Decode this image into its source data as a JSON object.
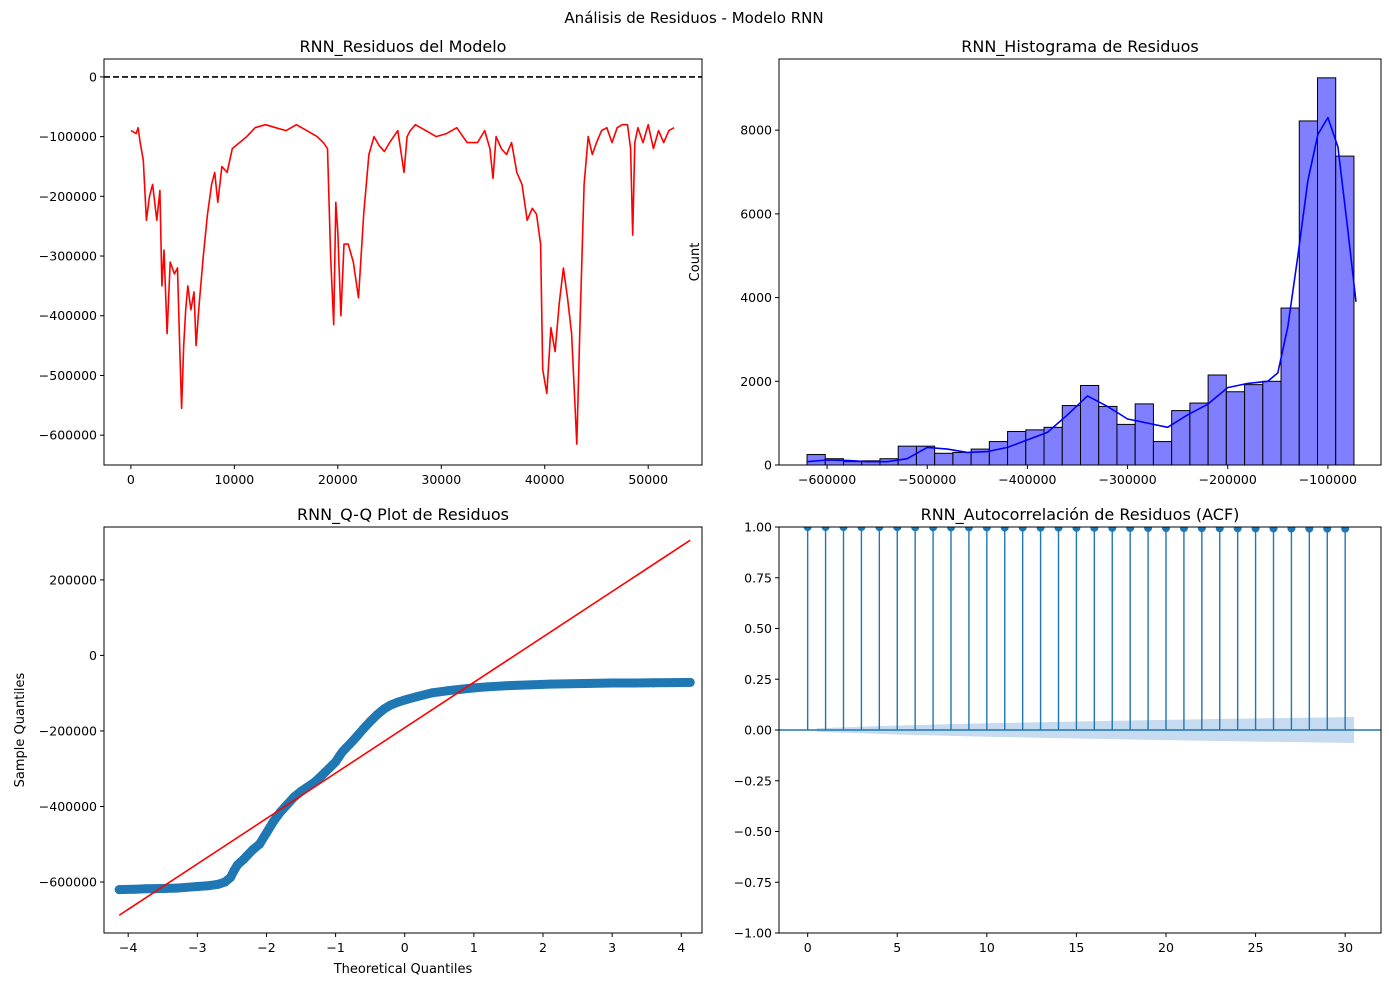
{
  "suptitle": "Análisis de Residuos - Modelo RNN",
  "colors": {
    "residual_line": "#ff0000",
    "hist_fill": "#7f7fff",
    "kde": "#0000ff",
    "qq_points": "#1f77b4",
    "qq_line": "#ff0000",
    "acf": "#1f77b4",
    "acf_band": "#c6dbef"
  },
  "chart_data": [
    {
      "type": "line",
      "title": "RNN_Residuos del Modelo",
      "xlabel": "",
      "ylabel": "",
      "xlim": [
        -2600,
        55200
      ],
      "ylim": [
        -650000,
        30000
      ],
      "xticks": [
        0,
        10000,
        20000,
        30000,
        40000,
        50000
      ],
      "xtick_labels": [
        "0",
        "10000",
        "20000",
        "30000",
        "40000",
        "50000"
      ],
      "yticks": [
        0,
        -100000,
        -200000,
        -300000,
        -400000,
        -500000,
        -600000
      ],
      "ytick_labels": [
        "0",
        "−100000",
        "−200000",
        "−300000",
        "−400000",
        "−500000",
        "−600000"
      ],
      "reference_line": {
        "y": 0,
        "style": "dashed",
        "color": "#000000"
      },
      "series": [
        {
          "x": [
            0,
            500,
            700,
            900,
            1200,
            1500,
            1800,
            2100,
            2500,
            2800,
            3000,
            3200,
            3500,
            3800,
            4200,
            4500,
            4700,
            4900,
            5100,
            5300,
            5500,
            5800,
            6100,
            6300,
            6600,
            7000,
            7400,
            7800,
            8100,
            8400,
            8800,
            9300,
            9800,
            10500,
            11200,
            12000,
            13000,
            14000,
            15000,
            16000,
            17000,
            18000,
            18600,
            19000,
            19300,
            19600,
            19800,
            20000,
            20300,
            20600,
            21000,
            21500,
            22000,
            22500,
            23000,
            23500,
            24000,
            24500,
            25000,
            25800,
            26400,
            26700,
            27000,
            27500,
            28500,
            29500,
            30500,
            31500,
            32500,
            33500,
            34200,
            34700,
            35000,
            35300,
            35800,
            36300,
            36800,
            37300,
            37800,
            38300,
            38800,
            39200,
            39600,
            39800,
            40200,
            40600,
            41000,
            41400,
            41800,
            42200,
            42600,
            42900,
            43100,
            43400,
            43800,
            44200,
            44600,
            45000,
            45500,
            46000,
            46500,
            47000,
            47500,
            48000,
            48300,
            48500,
            48700,
            49000,
            49500,
            50000,
            50500,
            51000,
            51500,
            52000,
            52500
          ],
          "y": [
            -90000,
            -95000,
            -85000,
            -110000,
            -140000,
            -240000,
            -200000,
            -180000,
            -240000,
            -190000,
            -350000,
            -290000,
            -430000,
            -310000,
            -330000,
            -320000,
            -440000,
            -555000,
            -450000,
            -390000,
            -350000,
            -390000,
            -360000,
            -450000,
            -380000,
            -300000,
            -230000,
            -180000,
            -160000,
            -210000,
            -150000,
            -160000,
            -120000,
            -110000,
            -100000,
            -85000,
            -80000,
            -85000,
            -90000,
            -80000,
            -90000,
            -100000,
            -110000,
            -120000,
            -300000,
            -415000,
            -210000,
            -260000,
            -400000,
            -280000,
            -280000,
            -310000,
            -370000,
            -230000,
            -130000,
            -100000,
            -115000,
            -125000,
            -110000,
            -90000,
            -160000,
            -100000,
            -90000,
            -80000,
            -90000,
            -100000,
            -95000,
            -85000,
            -110000,
            -110000,
            -90000,
            -120000,
            -170000,
            -100000,
            -120000,
            -130000,
            -110000,
            -160000,
            -180000,
            -240000,
            -220000,
            -230000,
            -280000,
            -490000,
            -530000,
            -420000,
            -460000,
            -380000,
            -320000,
            -370000,
            -430000,
            -540000,
            -615000,
            -420000,
            -180000,
            -100000,
            -130000,
            -110000,
            -90000,
            -85000,
            -110000,
            -85000,
            -80000,
            -80000,
            -120000,
            -265000,
            -110000,
            -85000,
            -110000,
            -80000,
            -120000,
            -90000,
            -110000,
            -90000,
            -85000
          ]
        }
      ]
    },
    {
      "type": "bar",
      "title": "RNN_Histograma de Residuos",
      "xlabel": "",
      "ylabel": "Count",
      "xlim": [
        -648000,
        -47000
      ],
      "ylim": [
        0,
        9700
      ],
      "xticks": [
        -600000,
        -500000,
        -400000,
        -300000,
        -200000,
        -100000
      ],
      "xtick_labels": [
        "−600000",
        "−500000",
        "−400000",
        "−300000",
        "−200000",
        "−100000"
      ],
      "yticks": [
        0,
        2000,
        4000,
        6000,
        8000
      ],
      "ytick_labels": [
        "0",
        "2000",
        "4000",
        "6000",
        "8000"
      ],
      "bin_start": -620000,
      "bin_width": 18200,
      "values": [
        250,
        150,
        80,
        100,
        150,
        450,
        450,
        280,
        300,
        380,
        560,
        800,
        840,
        900,
        1420,
        1900,
        1400,
        970,
        1460,
        560,
        1300,
        1480,
        2150,
        1750,
        1920,
        2000,
        3750,
        8220,
        9250,
        7380
      ],
      "kde": {
        "x": [
          -620000,
          -600000,
          -580000,
          -560000,
          -540000,
          -520000,
          -500000,
          -480000,
          -460000,
          -440000,
          -420000,
          -400000,
          -380000,
          -360000,
          -340000,
          -320000,
          -300000,
          -280000,
          -260000,
          -240000,
          -220000,
          -200000,
          -180000,
          -160000,
          -150000,
          -140000,
          -130000,
          -120000,
          -110000,
          -100000,
          -90000,
          -80000,
          -72000
        ],
        "y": [
          80,
          120,
          110,
          80,
          80,
          150,
          420,
          380,
          300,
          320,
          420,
          600,
          780,
          1200,
          1650,
          1400,
          1100,
          1000,
          900,
          1200,
          1450,
          1850,
          1950,
          2000,
          2200,
          3300,
          5000,
          6800,
          7900,
          8300,
          7600,
          5600,
          3900
        ]
      }
    },
    {
      "type": "scatter",
      "title": "RNN_Q-Q Plot de Residuos",
      "xlabel": "Theoretical Quantiles",
      "ylabel": "Sample Quantiles",
      "xlim": [
        -4.35,
        4.3
      ],
      "ylim": [
        -735000,
        340000
      ],
      "xticks": [
        -4,
        -3,
        -2,
        -1,
        0,
        1,
        2,
        3,
        4
      ],
      "xtick_labels": [
        "−4",
        "−3",
        "−2",
        "−1",
        "0",
        "1",
        "2",
        "3",
        "4"
      ],
      "yticks": [
        200000,
        0,
        -200000,
        -400000,
        -600000
      ],
      "ytick_labels": [
        "200000",
        "0",
        "−200000",
        "−400000",
        "−600000"
      ],
      "points": {
        "x": [
          -4.13,
          -3.9,
          -3.75,
          -3.6,
          -3.45,
          -3.3,
          -3.15,
          -3.0,
          -2.85,
          -2.7,
          -2.6,
          -2.52,
          -2.47,
          -2.42,
          -2.38,
          -2.33,
          -2.28,
          -2.2,
          -2.1,
          -2.0,
          -1.9,
          -1.8,
          -1.7,
          -1.6,
          -1.5,
          -1.4,
          -1.3,
          -1.2,
          -1.1,
          -1.0,
          -0.95,
          -0.9,
          -0.85,
          -0.8,
          -0.75,
          -0.7,
          -0.6,
          -0.5,
          -0.4,
          -0.3,
          -0.2,
          -0.1,
          0.0,
          0.2,
          0.4,
          0.6,
          0.8,
          1.0,
          1.2,
          1.5,
          1.8,
          2.1,
          2.4,
          2.7,
          3.0,
          3.3,
          3.6,
          3.9,
          4.13
        ],
        "y": [
          -620000,
          -619000,
          -618000,
          -617500,
          -617000,
          -616000,
          -614000,
          -612000,
          -610000,
          -606000,
          -600000,
          -588000,
          -570000,
          -555000,
          -548000,
          -540000,
          -530000,
          -515000,
          -500000,
          -470000,
          -440000,
          -415000,
          -395000,
          -375000,
          -360000,
          -348000,
          -335000,
          -318000,
          -300000,
          -282000,
          -268000,
          -255000,
          -245000,
          -236000,
          -226000,
          -216000,
          -195000,
          -175000,
          -157000,
          -142000,
          -131000,
          -124000,
          -118000,
          -108000,
          -99000,
          -94000,
          -90000,
          -86000,
          -83000,
          -80000,
          -78000,
          -76000,
          -75000,
          -74000,
          -73000,
          -73000,
          -72500,
          -72000,
          -71500
        ]
      },
      "fit_line": {
        "x": [
          -4.13,
          4.13
        ],
        "y": [
          -688000,
          305000
        ]
      }
    },
    {
      "type": "bar",
      "title": "RNN_Autocorrelación de Residuos (ACF)",
      "xlabel": "",
      "ylabel": "",
      "xlim": [
        -1.6,
        32.0
      ],
      "ylim": [
        -1.0,
        1.0
      ],
      "xticks": [
        0,
        5,
        10,
        15,
        20,
        25,
        30
      ],
      "xtick_labels": [
        "0",
        "5",
        "10",
        "15",
        "20",
        "25",
        "30"
      ],
      "yticks": [
        1.0,
        0.75,
        0.5,
        0.25,
        0.0,
        -0.25,
        -0.5,
        -0.75,
        -1.0
      ],
      "ytick_labels": [
        "1.00",
        "0.75",
        "0.50",
        "0.25",
        "0.00",
        "−0.25",
        "−0.50",
        "−0.75",
        "−1.00"
      ],
      "lags": [
        0,
        1,
        2,
        3,
        4,
        5,
        6,
        7,
        8,
        9,
        10,
        11,
        12,
        13,
        14,
        15,
        16,
        17,
        18,
        19,
        20,
        21,
        22,
        23,
        24,
        25,
        26,
        27,
        28,
        29,
        30
      ],
      "values": [
        1.0,
        0.9999,
        0.9997,
        0.9995,
        0.9993,
        0.999,
        0.9988,
        0.9985,
        0.9982,
        0.998,
        0.9977,
        0.9974,
        0.9971,
        0.9968,
        0.9965,
        0.9962,
        0.9959,
        0.9956,
        0.9953,
        0.995,
        0.9947,
        0.9944,
        0.9941,
        0.9938,
        0.9935,
        0.9932,
        0.9929,
        0.9926,
        0.9923,
        0.992,
        0.9917
      ],
      "confidence_band": {
        "lags": [
          0.5,
          5,
          10,
          15,
          20,
          25,
          30.5
        ],
        "upper": [
          0.009,
          0.022,
          0.033,
          0.042,
          0.05,
          0.057,
          0.064
        ],
        "lower": [
          -0.009,
          -0.022,
          -0.033,
          -0.042,
          -0.05,
          -0.057,
          -0.064
        ]
      }
    }
  ]
}
